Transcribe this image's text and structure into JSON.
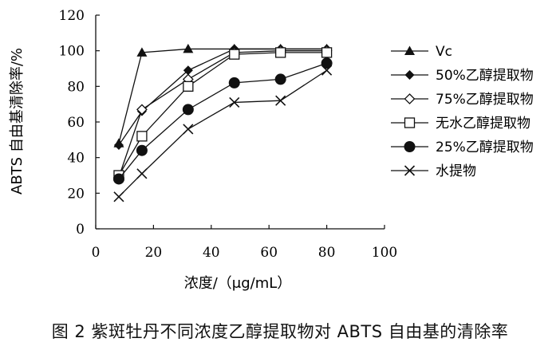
{
  "figure": {
    "caption": "图 2   紫斑牡丹不同浓度乙醇提取物对 ABTS 自由基的清除率"
  },
  "chart_data": {
    "type": "line",
    "xlabel": "浓度/（μg/mL）",
    "ylabel": "ABTS 自由基清除率/%",
    "xlim": [
      0,
      100
    ],
    "ylim": [
      0,
      120
    ],
    "xticks": [
      0,
      20,
      40,
      60,
      80,
      100
    ],
    "yticks": [
      0,
      20,
      40,
      60,
      80,
      100,
      120
    ],
    "grid": false,
    "legend_position": "right",
    "x": [
      8,
      16,
      32,
      48,
      64,
      80
    ],
    "series": [
      {
        "name": "Vc",
        "marker": "triangle",
        "values": [
          48,
          99,
          101,
          101,
          101,
          101
        ]
      },
      {
        "name": "50%乙醇提取物",
        "marker": "diamond-filled",
        "values": [
          47,
          66,
          89,
          101,
          101,
          101
        ]
      },
      {
        "name": "75%乙醇提取物",
        "marker": "diamond-open",
        "values": [
          29,
          67,
          84,
          99,
          100,
          100
        ]
      },
      {
        "name": "无水乙醇提取物",
        "marker": "square-open",
        "values": [
          30,
          52,
          80,
          98,
          99,
          99
        ]
      },
      {
        "name": "25%乙醇提取物",
        "marker": "circle-filled",
        "values": [
          28,
          44,
          67,
          82,
          84,
          93
        ]
      },
      {
        "name": "水提物",
        "marker": "cross",
        "values": [
          18,
          31,
          56,
          71,
          72,
          89
        ]
      }
    ]
  }
}
